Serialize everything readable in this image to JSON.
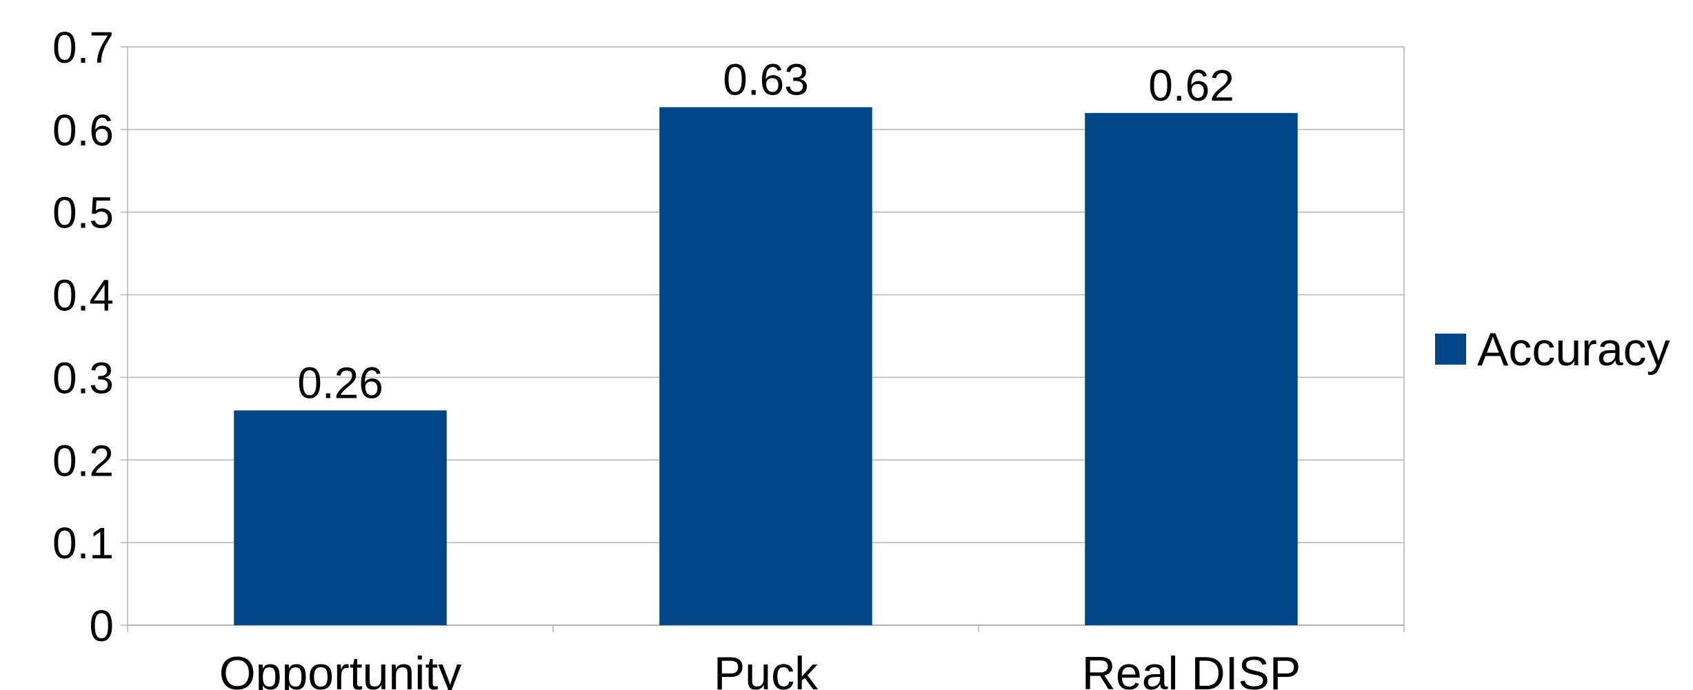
{
  "chart_data": {
    "type": "bar",
    "title": "",
    "xlabel": "",
    "ylabel": "",
    "categories": [
      "Opportunity",
      "Puck",
      "Real DISP"
    ],
    "series": [
      {
        "name": "Accuracy",
        "values": [
          0.26,
          0.627,
          0.62
        ],
        "labels": [
          "0.26",
          "0.63",
          "0.62"
        ]
      }
    ],
    "ylim": [
      0,
      0.7
    ],
    "yticks": [
      0,
      0.1,
      0.2,
      0.3,
      0.4,
      0.5,
      0.6,
      0.7
    ],
    "ytick_labels": [
      "0",
      "0.1",
      "0.2",
      "0.3",
      "0.4",
      "0.5",
      "0.6",
      "0.7"
    ],
    "grid": true,
    "legend_position": "right",
    "colors": {
      "bar": "#004586",
      "grid": "#b3b3b3",
      "axis": "#b3b3b3",
      "text": "#000000"
    }
  }
}
